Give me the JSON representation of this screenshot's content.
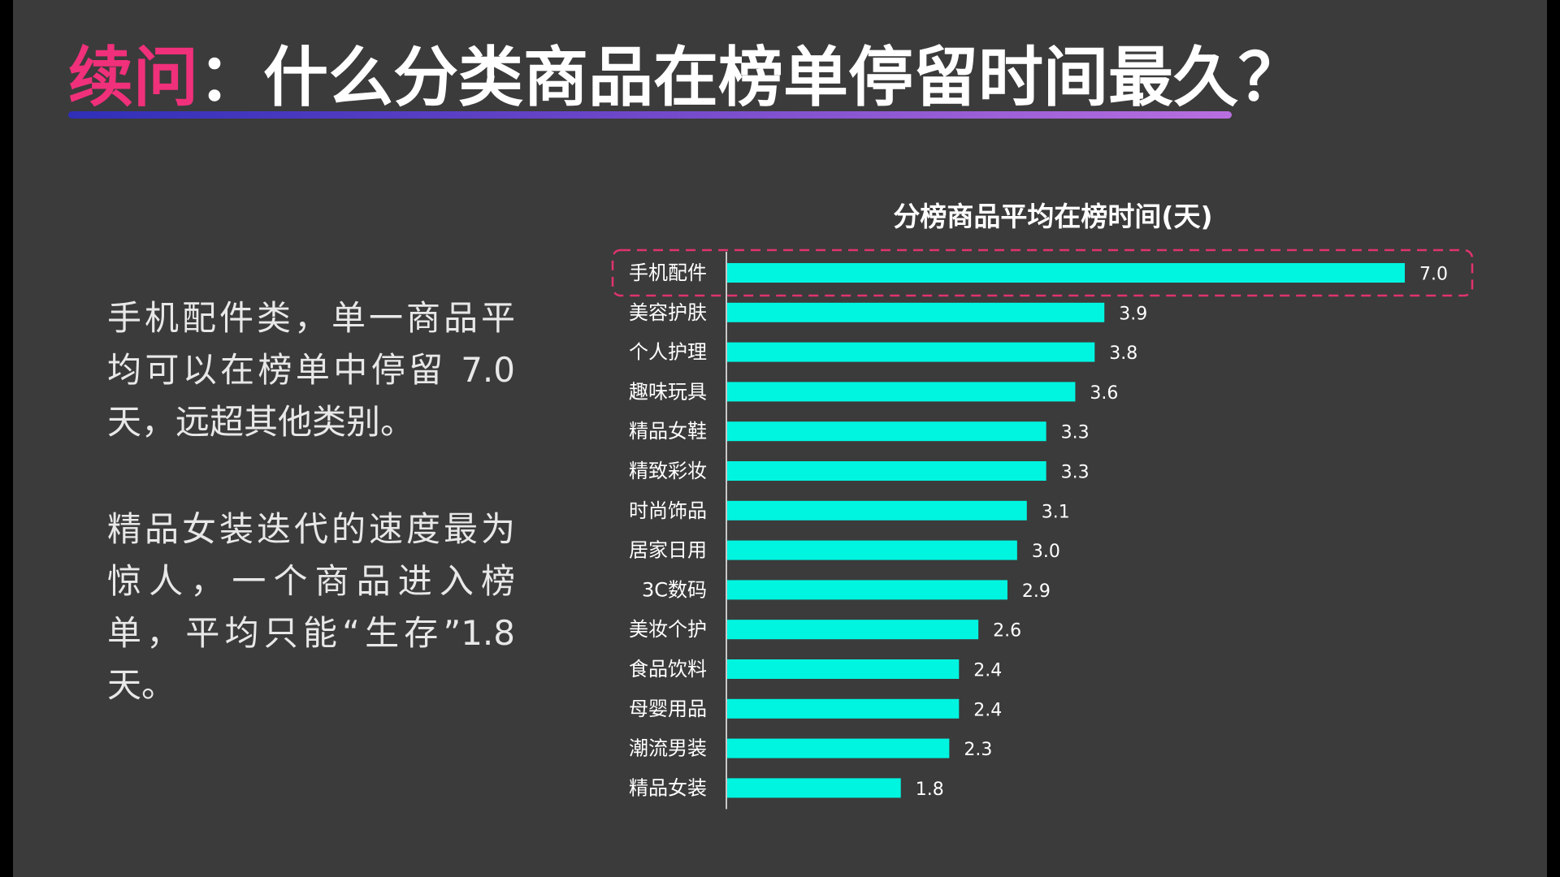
{
  "title": {
    "accent": "续问",
    "rest": "：什么分类商品在榜单停留时间最久？"
  },
  "paragraphs": [
    "手机配件类，单一商品平均可以在榜单中停留 7.0天，远超其他类别。",
    "精品女装迭代的速度最为惊人，一个商品进入榜单，平均只能“生存”1.8天。"
  ],
  "colors": {
    "background": "#3b3b3b",
    "accent": "#f0307a",
    "bar": "#00f5e0",
    "highlight_border": "#e0336e"
  },
  "chart_data": {
    "type": "bar",
    "orientation": "horizontal",
    "title": "分榜商品平均在榜时间(天)",
    "xlabel": "",
    "ylabel": "",
    "xlim": [
      0,
      7.0
    ],
    "grid": false,
    "highlight": "手机配件",
    "categories": [
      "手机配件",
      "美容护肤",
      "个人护理",
      "趣味玩具",
      "精品女鞋",
      "精致彩妆",
      "时尚饰品",
      "居家日用",
      "3C数码",
      "美妆个护",
      "食品饮料",
      "母婴用品",
      "潮流男装",
      "精品女装"
    ],
    "values": [
      7.0,
      3.9,
      3.8,
      3.6,
      3.3,
      3.3,
      3.1,
      3.0,
      2.9,
      2.6,
      2.4,
      2.4,
      2.3,
      1.8
    ],
    "value_labels": [
      "7.0",
      "3.9",
      "3.8",
      "3.6",
      "3.3",
      "3.3",
      "3.1",
      "3.0",
      "2.9",
      "2.6",
      "2.4",
      "2.4",
      "2.3",
      "1.8"
    ]
  }
}
